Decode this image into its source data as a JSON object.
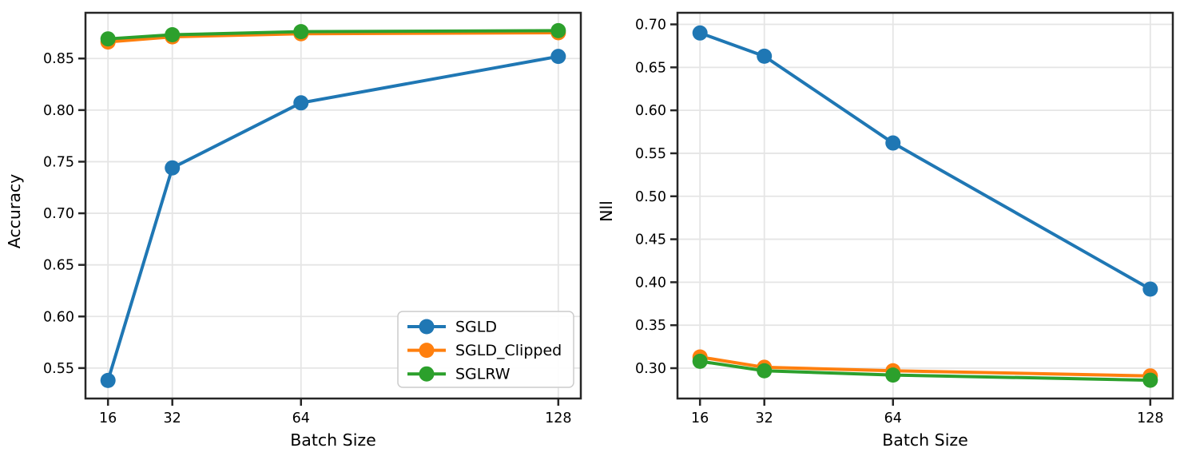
{
  "figure": {
    "background": "#ffffff",
    "grid_color": "#e5e5e5",
    "spine_color": "#262626",
    "text_color": "#000000"
  },
  "chart_data": [
    {
      "type": "line",
      "panel": "left",
      "title": "",
      "xlabel": "Batch Size",
      "ylabel": "Accuracy",
      "x": [
        16,
        32,
        64,
        128
      ],
      "xticks": [
        16,
        32,
        64,
        128
      ],
      "yticks": [
        0.55,
        0.6,
        0.65,
        0.7,
        0.75,
        0.8,
        0.85
      ],
      "xlim": [
        10.4,
        133.6
      ],
      "ylim": [
        0.5205,
        0.8943
      ],
      "grid": true,
      "legend": {
        "position": "lower right",
        "entries": [
          "SGLD",
          "SGLD_Clipped",
          "SGLRW"
        ]
      },
      "series": [
        {
          "name": "SGLD",
          "color": "#1f77b4",
          "values": [
            0.538,
            0.744,
            0.807,
            0.852
          ]
        },
        {
          "name": "SGLD_Clipped",
          "color": "#ff7f0e",
          "values": [
            0.866,
            0.871,
            0.874,
            0.875
          ]
        },
        {
          "name": "SGLRW",
          "color": "#2ca02c",
          "values": [
            0.869,
            0.873,
            0.876,
            0.877
          ]
        }
      ]
    },
    {
      "type": "line",
      "panel": "right",
      "title": "",
      "xlabel": "Batch Size",
      "ylabel": "Nll",
      "x": [
        16,
        32,
        64,
        128
      ],
      "xticks": [
        16,
        32,
        64,
        128
      ],
      "yticks": [
        0.3,
        0.35,
        0.4,
        0.45,
        0.5,
        0.55,
        0.6,
        0.65,
        0.7
      ],
      "xlim": [
        10.4,
        133.6
      ],
      "ylim": [
        0.2647,
        0.7135
      ],
      "grid": true,
      "legend": null,
      "series": [
        {
          "name": "SGLD",
          "color": "#1f77b4",
          "values": [
            0.69,
            0.663,
            0.562,
            0.392
          ]
        },
        {
          "name": "SGLD_Clipped",
          "color": "#ff7f0e",
          "values": [
            0.313,
            0.301,
            0.297,
            0.291
          ]
        },
        {
          "name": "SGLRW",
          "color": "#2ca02c",
          "values": [
            0.308,
            0.297,
            0.292,
            0.286
          ]
        }
      ]
    }
  ]
}
